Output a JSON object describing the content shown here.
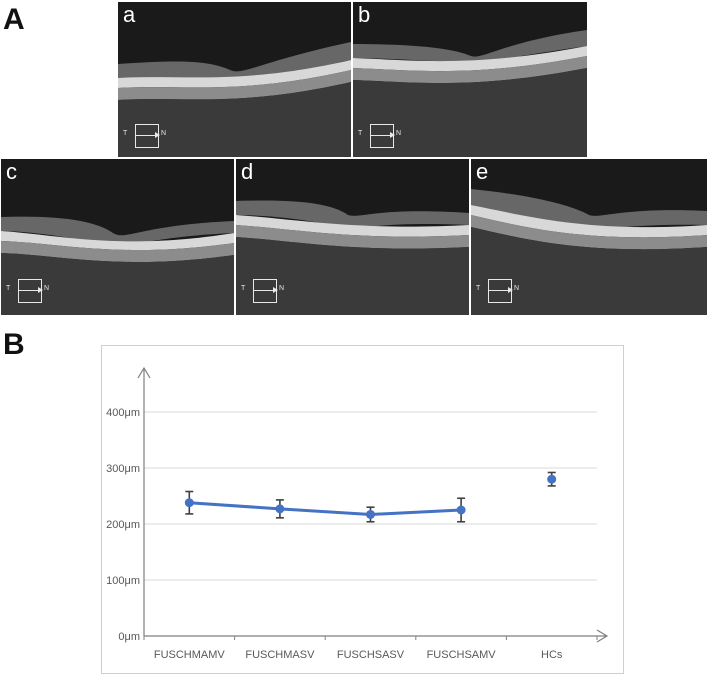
{
  "figure": {
    "panel_a_label": "A",
    "panel_b_label": "B"
  },
  "oct_scans": [
    {
      "label": "a",
      "orient_left": "T",
      "orient_right": "N"
    },
    {
      "label": "b",
      "orient_left": "T",
      "orient_right": "N"
    },
    {
      "label": "c",
      "orient_left": "T",
      "orient_right": "N"
    },
    {
      "label": "d",
      "orient_left": "T",
      "orient_right": "N"
    },
    {
      "label": "e",
      "orient_left": "T",
      "orient_right": "N"
    }
  ],
  "chart_data": {
    "type": "line",
    "title": "",
    "xlabel": "",
    "ylabel": "",
    "categories": [
      "FUSCHMAMV",
      "FUSCHMASV",
      "FUSCHSASV",
      "FUSCHSAMV",
      "HCs"
    ],
    "yticks": [
      "0μm",
      "100μm",
      "200μm",
      "300μm",
      "400μm"
    ],
    "ylim": [
      0,
      400
    ],
    "grid": true,
    "series": [
      {
        "values": [
          238,
          227,
          217,
          225,
          null
        ],
        "error": [
          20,
          16,
          13,
          21,
          null
        ],
        "connected": true,
        "color": "#4472C4"
      },
      {
        "values": [
          null,
          null,
          null,
          null,
          280
        ],
        "error": [
          null,
          null,
          null,
          null,
          12
        ],
        "connected": false,
        "color": "#4472C4"
      }
    ]
  }
}
